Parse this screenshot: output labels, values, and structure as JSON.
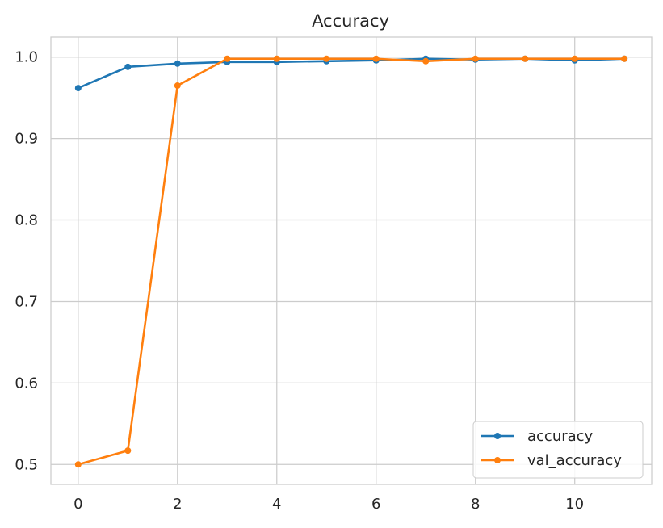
{
  "chart_data": {
    "type": "line",
    "title": "Accuracy",
    "xlabel": "",
    "ylabel": "",
    "x": [
      0,
      1,
      2,
      3,
      4,
      5,
      6,
      7,
      8,
      9,
      10,
      11
    ],
    "xlim": [
      -0.55,
      11.55
    ],
    "ylim": [
      0.4755,
      1.0245
    ],
    "xticks": [
      0,
      2,
      4,
      6,
      8,
      10
    ],
    "yticks": [
      0.5,
      0.6,
      0.7,
      0.8,
      0.9,
      1.0
    ],
    "ytick_labels": [
      "0.5",
      "0.6",
      "0.7",
      "0.8",
      "0.9",
      "1.0"
    ],
    "grid": true,
    "legend_position": "lower-right",
    "series": [
      {
        "name": "accuracy",
        "color": "#1f77b4",
        "marker": "circle",
        "values": [
          0.962,
          0.988,
          0.992,
          0.994,
          0.994,
          0.995,
          0.996,
          0.998,
          0.997,
          0.998,
          0.996,
          0.998
        ]
      },
      {
        "name": "val_accuracy",
        "color": "#ff7f0e",
        "marker": "circle",
        "values": [
          0.5,
          0.517,
          0.965,
          0.998,
          0.998,
          0.998,
          0.998,
          0.995,
          0.998,
          0.998,
          0.998,
          0.998
        ]
      }
    ]
  }
}
